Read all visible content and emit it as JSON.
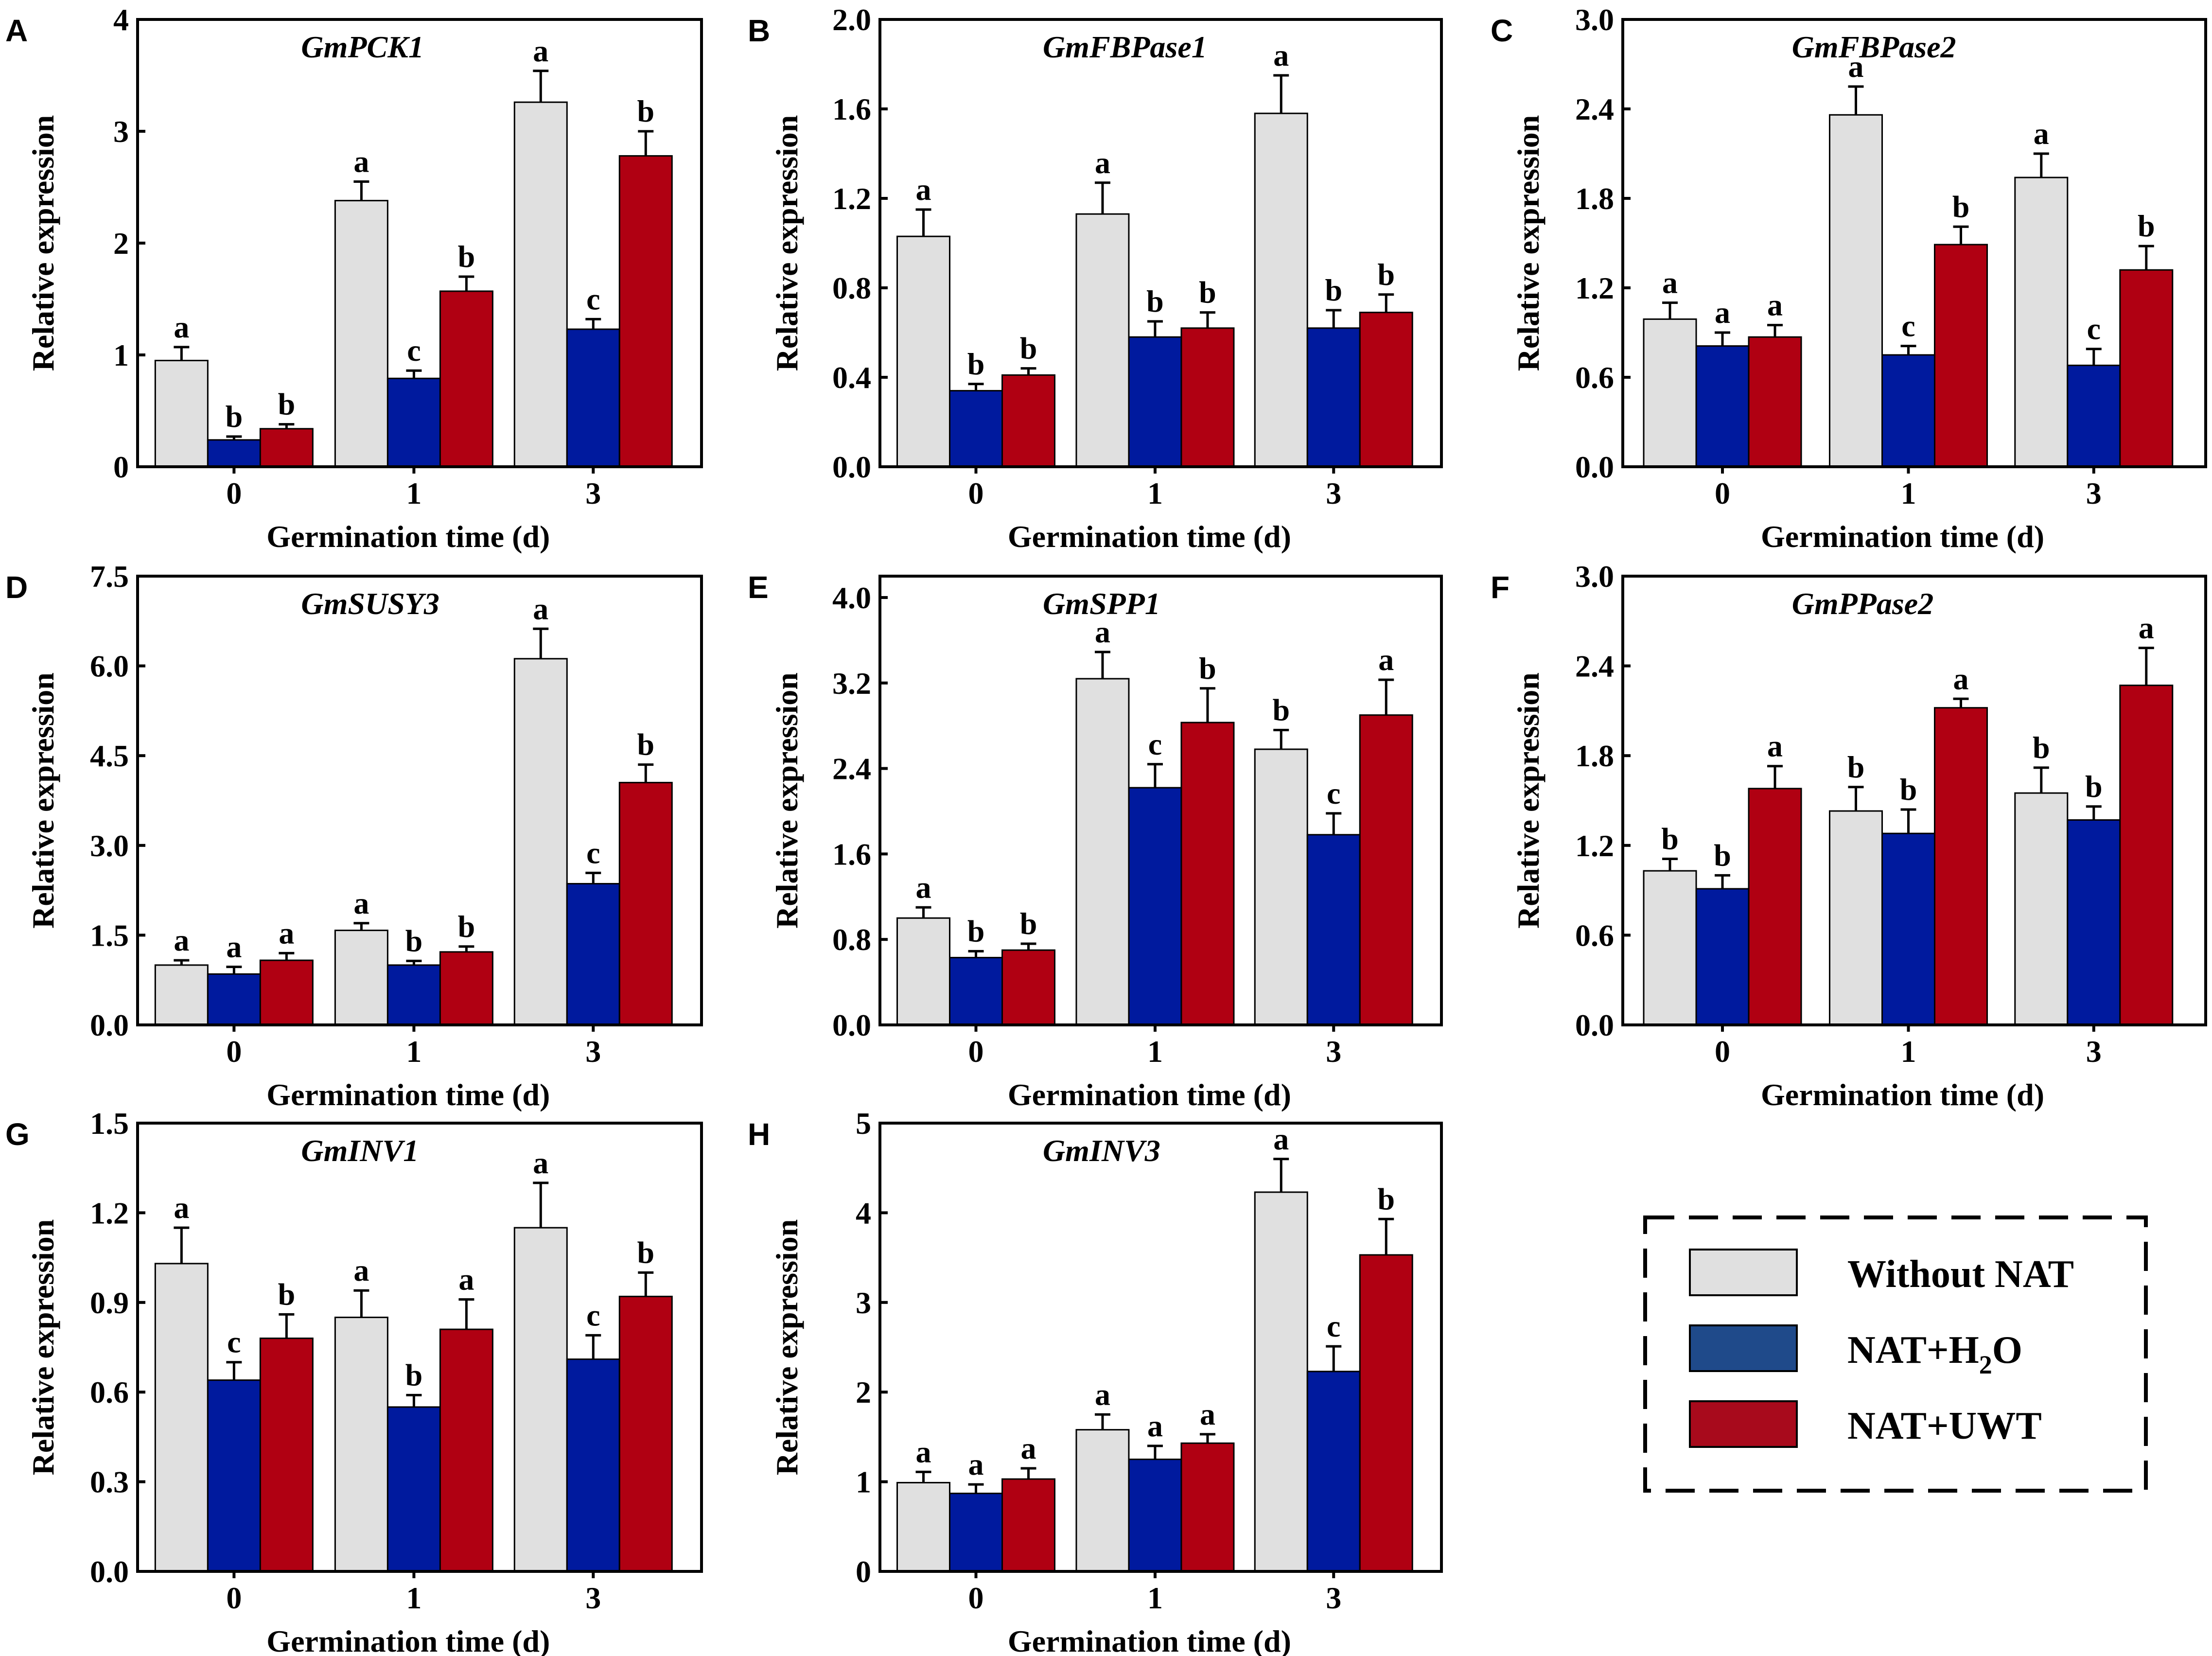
{
  "legend": {
    "items": [
      {
        "label": "Without NAT",
        "color": "#e0e0e0"
      },
      {
        "label": "NAT+H",
        "sub": "2",
        "suffix": "O",
        "color": "#001a9e"
      },
      {
        "label": "NAT+UWT",
        "color": "#b00012"
      }
    ]
  },
  "chart_data": [
    {
      "panel": "A",
      "type": "bar",
      "title": "GmPCK1",
      "xlabel": "Germination time (d)",
      "ylabel": "Relative expression",
      "categories": [
        "0",
        "1",
        "3"
      ],
      "ylim": [
        0,
        4
      ],
      "yticks": [
        "0",
        "1",
        "2",
        "3",
        "4"
      ],
      "series": [
        {
          "name": "Without NAT",
          "color": "#e0e0e0",
          "values": [
            0.95,
            2.38,
            3.26
          ],
          "errors": [
            0.12,
            0.17,
            0.28
          ],
          "letters": [
            "a",
            "a",
            "a"
          ]
        },
        {
          "name": "NAT+H2O",
          "color": "#001a9e",
          "values": [
            0.24,
            0.79,
            1.23
          ],
          "errors": [
            0.03,
            0.07,
            0.09
          ],
          "letters": [
            "b",
            "c",
            "c"
          ]
        },
        {
          "name": "NAT+UWT",
          "color": "#b00012",
          "values": [
            0.34,
            1.57,
            2.78
          ],
          "errors": [
            0.04,
            0.13,
            0.22
          ],
          "letters": [
            "b",
            "b",
            "b"
          ]
        }
      ]
    },
    {
      "panel": "B",
      "type": "bar",
      "title": "GmFBPase1",
      "xlabel": "Germination time (d)",
      "ylabel": "Relative expression",
      "categories": [
        "0",
        "1",
        "3"
      ],
      "ylim": [
        0,
        2.0
      ],
      "yticks": [
        "0.0",
        "0.4",
        "0.8",
        "1.2",
        "1.6",
        "2.0"
      ],
      "series": [
        {
          "name": "Without NAT",
          "color": "#e0e0e0",
          "values": [
            1.03,
            1.13,
            1.58
          ],
          "errors": [
            0.12,
            0.14,
            0.17
          ],
          "letters": [
            "a",
            "a",
            "a"
          ]
        },
        {
          "name": "NAT+H2O",
          "color": "#001a9e",
          "values": [
            0.34,
            0.58,
            0.62
          ],
          "errors": [
            0.03,
            0.07,
            0.08
          ],
          "letters": [
            "b",
            "b",
            "b"
          ]
        },
        {
          "name": "NAT+UWT",
          "color": "#b00012",
          "values": [
            0.41,
            0.62,
            0.69
          ],
          "errors": [
            0.03,
            0.07,
            0.08
          ],
          "letters": [
            "b",
            "b",
            "b"
          ]
        }
      ]
    },
    {
      "panel": "C",
      "type": "bar",
      "title": "GmFBPase2",
      "xlabel": "Germination time (d)",
      "ylabel": "Relative expression",
      "categories": [
        "0",
        "1",
        "3"
      ],
      "ylim": [
        0,
        3.0
      ],
      "yticks": [
        "0.0",
        "0.6",
        "1.2",
        "1.8",
        "2.4",
        "3.0"
      ],
      "series": [
        {
          "name": "Without NAT",
          "color": "#e0e0e0",
          "values": [
            0.99,
            2.36,
            1.94
          ],
          "errors": [
            0.11,
            0.19,
            0.16
          ],
          "letters": [
            "a",
            "a",
            "a"
          ]
        },
        {
          "name": "NAT+H2O",
          "color": "#001a9e",
          "values": [
            0.81,
            0.75,
            0.68
          ],
          "errors": [
            0.09,
            0.06,
            0.11
          ],
          "letters": [
            "a",
            "c",
            "c"
          ]
        },
        {
          "name": "NAT+UWT",
          "color": "#b00012",
          "values": [
            0.87,
            1.49,
            1.32
          ],
          "errors": [
            0.08,
            0.12,
            0.16
          ],
          "letters": [
            "a",
            "b",
            "b"
          ]
        }
      ]
    },
    {
      "panel": "D",
      "type": "bar",
      "title": "GmSUSY3",
      "xlabel": "Germination time (d)",
      "ylabel": "Relative expression",
      "categories": [
        "0",
        "1",
        "3"
      ],
      "ylim": [
        0,
        7.5
      ],
      "yticks": [
        "0.0",
        "1.5",
        "3.0",
        "4.5",
        "6.0",
        "7.5"
      ],
      "series": [
        {
          "name": "Without NAT",
          "color": "#e0e0e0",
          "values": [
            1.0,
            1.58,
            6.12
          ],
          "errors": [
            0.08,
            0.12,
            0.5
          ],
          "letters": [
            "a",
            "a",
            "a"
          ]
        },
        {
          "name": "NAT+H2O",
          "color": "#001a9e",
          "values": [
            0.85,
            1.0,
            2.36
          ],
          "errors": [
            0.12,
            0.07,
            0.18
          ],
          "letters": [
            "a",
            "b",
            "c"
          ]
        },
        {
          "name": "NAT+UWT",
          "color": "#b00012",
          "values": [
            1.08,
            1.22,
            4.05
          ],
          "errors": [
            0.12,
            0.09,
            0.3
          ],
          "letters": [
            "a",
            "b",
            "b"
          ]
        }
      ]
    },
    {
      "panel": "E",
      "type": "bar",
      "title": "GmSPP1",
      "xlabel": "Germination time (d)",
      "ylabel": "Relative expression",
      "categories": [
        "0",
        "1",
        "3"
      ],
      "ylim": [
        0,
        4.2
      ],
      "yticks": [
        "0.0",
        "0.8",
        "1.6",
        "2.4",
        "3.2",
        "4.0"
      ],
      "series": [
        {
          "name": "Without NAT",
          "color": "#e0e0e0",
          "values": [
            1.0,
            3.24,
            2.58
          ],
          "errors": [
            0.1,
            0.25,
            0.18
          ],
          "letters": [
            "a",
            "a",
            "b"
          ]
        },
        {
          "name": "NAT+H2O",
          "color": "#001a9e",
          "values": [
            0.63,
            2.22,
            1.78
          ],
          "errors": [
            0.06,
            0.22,
            0.2
          ],
          "letters": [
            "b",
            "c",
            "c"
          ]
        },
        {
          "name": "NAT+UWT",
          "color": "#b00012",
          "values": [
            0.7,
            2.83,
            2.9
          ],
          "errors": [
            0.06,
            0.32,
            0.33
          ],
          "letters": [
            "b",
            "b",
            "a"
          ]
        }
      ]
    },
    {
      "panel": "F",
      "type": "bar",
      "title": "GmPPase2",
      "xlabel": "Germination time (d)",
      "ylabel": "Relative expression",
      "categories": [
        "0",
        "1",
        "3"
      ],
      "ylim": [
        0,
        3.0
      ],
      "yticks": [
        "0.0",
        "0.6",
        "1.2",
        "1.8",
        "2.4",
        "3.0"
      ],
      "series": [
        {
          "name": "Without NAT",
          "color": "#e0e0e0",
          "values": [
            1.03,
            1.43,
            1.55
          ],
          "errors": [
            0.08,
            0.16,
            0.17
          ],
          "letters": [
            "b",
            "b",
            "b"
          ]
        },
        {
          "name": "NAT+H2O",
          "color": "#001a9e",
          "values": [
            0.91,
            1.28,
            1.37
          ],
          "errors": [
            0.09,
            0.16,
            0.09
          ],
          "letters": [
            "b",
            "b",
            "b"
          ]
        },
        {
          "name": "NAT+UWT",
          "color": "#b00012",
          "values": [
            1.58,
            2.12,
            2.27
          ],
          "errors": [
            0.15,
            0.06,
            0.25
          ],
          "letters": [
            "a",
            "a",
            "a"
          ]
        }
      ]
    },
    {
      "panel": "G",
      "type": "bar",
      "title": "GmINV1",
      "xlabel": "Germination time (d)",
      "ylabel": "Relative expression",
      "categories": [
        "0",
        "1",
        "3"
      ],
      "ylim": [
        0,
        1.5
      ],
      "yticks": [
        "0.0",
        "0.3",
        "0.6",
        "0.9",
        "1.2",
        "1.5"
      ],
      "series": [
        {
          "name": "Without NAT",
          "color": "#e0e0e0",
          "values": [
            1.03,
            0.85,
            1.15
          ],
          "errors": [
            0.12,
            0.09,
            0.15
          ],
          "letters": [
            "a",
            "a",
            "a"
          ]
        },
        {
          "name": "NAT+H2O",
          "color": "#001a9e",
          "values": [
            0.64,
            0.55,
            0.71
          ],
          "errors": [
            0.06,
            0.04,
            0.08
          ],
          "letters": [
            "c",
            "b",
            "c"
          ]
        },
        {
          "name": "NAT+UWT",
          "color": "#b00012",
          "values": [
            0.78,
            0.81,
            0.92
          ],
          "errors": [
            0.08,
            0.1,
            0.08
          ],
          "letters": [
            "b",
            "a",
            "b"
          ]
        }
      ]
    },
    {
      "panel": "H",
      "type": "bar",
      "title": "GmINV3",
      "xlabel": "Germination time (d)",
      "ylabel": "Relative expression",
      "categories": [
        "0",
        "1",
        "3"
      ],
      "ylim": [
        0,
        5
      ],
      "yticks": [
        "0",
        "1",
        "2",
        "3",
        "4",
        "5"
      ],
      "series": [
        {
          "name": "Without NAT",
          "color": "#e0e0e0",
          "values": [
            0.99,
            1.58,
            4.23
          ],
          "errors": [
            0.12,
            0.17,
            0.37
          ],
          "letters": [
            "a",
            "a",
            "a"
          ]
        },
        {
          "name": "NAT+H2O",
          "color": "#001a9e",
          "values": [
            0.87,
            1.25,
            2.23
          ],
          "errors": [
            0.1,
            0.15,
            0.28
          ],
          "letters": [
            "a",
            "a",
            "c"
          ]
        },
        {
          "name": "NAT+UWT",
          "color": "#b00012",
          "values": [
            1.03,
            1.43,
            3.53
          ],
          "errors": [
            0.12,
            0.1,
            0.4
          ],
          "letters": [
            "a",
            "a",
            "b"
          ]
        }
      ]
    }
  ]
}
